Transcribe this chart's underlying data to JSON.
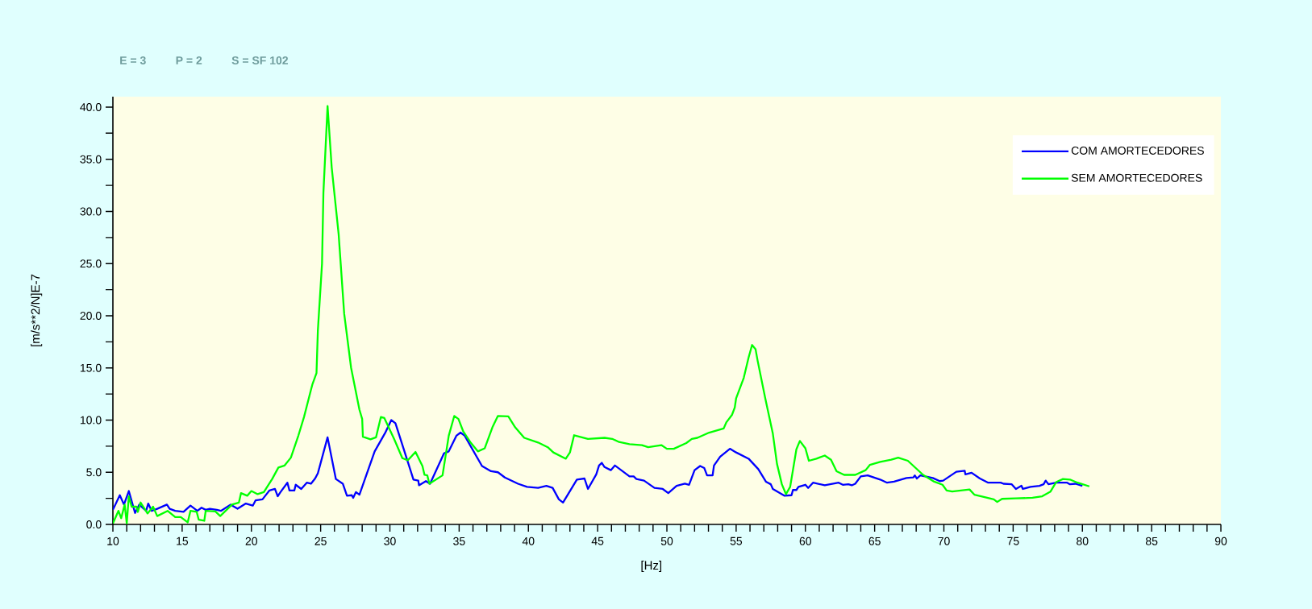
{
  "chart_data": {
    "type": "line",
    "xlabel": "[Hz]",
    "ylabel": "[m/s**2/N]E-7",
    "annotations": [
      "E = 3",
      "P = 2",
      "S = SF 102"
    ],
    "xlim": [
      10,
      90
    ],
    "ylim": [
      0,
      41
    ],
    "xticks": [
      10,
      {
        "value": 11,
        "label": null
      },
      {
        "value": 12,
        "label": null
      },
      {
        "value": 13,
        "label": null
      },
      {
        "value": 14,
        "label": null
      },
      15,
      {
        "value": 16,
        "label": null
      },
      {
        "value": 17,
        "label": null
      },
      {
        "value": 18,
        "label": null
      },
      {
        "value": 19,
        "label": null
      },
      20,
      {
        "value": 21,
        "label": null
      },
      {
        "value": 22,
        "label": null
      },
      {
        "value": 23,
        "label": null
      },
      {
        "value": 24,
        "label": null
      },
      25,
      {
        "value": 26,
        "label": null
      },
      {
        "value": 27,
        "label": null
      },
      {
        "value": 28,
        "label": null
      },
      {
        "value": 29,
        "label": null
      },
      30,
      {
        "value": 31,
        "label": null
      },
      {
        "value": 32,
        "label": null
      },
      {
        "value": 33,
        "label": null
      },
      {
        "value": 34,
        "label": null
      },
      35,
      {
        "value": 36,
        "label": null
      },
      {
        "value": 37,
        "label": null
      },
      {
        "value": 38,
        "label": null
      },
      {
        "value": 39,
        "label": null
      },
      40,
      {
        "value": 41,
        "label": null
      },
      {
        "value": 42,
        "label": null
      },
      {
        "value": 43,
        "label": null
      },
      {
        "value": 44,
        "label": null
      },
      45,
      {
        "value": 46,
        "label": null
      },
      {
        "value": 47,
        "label": null
      },
      {
        "value": 48,
        "label": null
      },
      {
        "value": 49,
        "label": null
      },
      50,
      {
        "value": 51,
        "label": null
      },
      {
        "value": 52,
        "label": null
      },
      {
        "value": 53,
        "label": null
      },
      {
        "value": 54,
        "label": null
      },
      55,
      {
        "value": 56,
        "label": null
      },
      {
        "value": 57,
        "label": null
      },
      {
        "value": 58,
        "label": null
      },
      {
        "value": 59,
        "label": null
      },
      60,
      {
        "value": 61,
        "label": null
      },
      {
        "value": 62,
        "label": null
      },
      {
        "value": 63,
        "label": null
      },
      {
        "value": 64,
        "label": null
      },
      65,
      {
        "value": 66,
        "label": null
      },
      {
        "value": 67,
        "label": null
      },
      {
        "value": 68,
        "label": null
      },
      {
        "value": 69,
        "label": null
      },
      70,
      {
        "value": 71,
        "label": null
      },
      {
        "value": 72,
        "label": null
      },
      {
        "value": 73,
        "label": null
      },
      {
        "value": 74,
        "label": null
      },
      75,
      {
        "value": 76,
        "label": null
      },
      {
        "value": 77,
        "label": null
      },
      {
        "value": 78,
        "label": null
      },
      {
        "value": 79,
        "label": null
      },
      80,
      {
        "value": 81,
        "label": null
      },
      {
        "value": 82,
        "label": null
      },
      {
        "value": 83,
        "label": null
      },
      {
        "value": 84,
        "label": null
      },
      85,
      {
        "value": 86,
        "label": null
      },
      {
        "value": 87,
        "label": null
      },
      {
        "value": 88,
        "label": null
      },
      {
        "value": 89,
        "label": null
      },
      90
    ],
    "yticks": [
      {
        "value": 0,
        "label": "0.0"
      },
      {
        "value": 2.5,
        "label": null
      },
      {
        "value": 5,
        "label": "5.0"
      },
      {
        "value": 7.5,
        "label": null
      },
      {
        "value": 10,
        "label": "10.0"
      },
      {
        "value": 12.5,
        "label": null
      },
      {
        "value": 15,
        "label": "15.0"
      },
      {
        "value": 17.5,
        "label": null
      },
      {
        "value": 20,
        "label": "20.0"
      },
      {
        "value": 22.5,
        "label": null
      },
      {
        "value": 25,
        "label": "25.0"
      },
      {
        "value": 27.5,
        "label": null
      },
      {
        "value": 30,
        "label": "30.0"
      },
      {
        "value": 32.5,
        "label": null
      },
      {
        "value": 35,
        "label": "35.0"
      },
      {
        "value": 37.5,
        "label": null
      },
      {
        "value": 40,
        "label": "40.0"
      }
    ],
    "legend": "top right",
    "series": [
      {
        "name": "COM AMORTECEDORES",
        "color": "#0000ff",
        "x": [
          10,
          10.5,
          10.8,
          11.15,
          11.6,
          11.9,
          12.4,
          12.55,
          12.8,
          13.2,
          13.9,
          14.1,
          14.5,
          15.1,
          15.6,
          16.1,
          16.4,
          16.7,
          17.0,
          17.5,
          17.8,
          18.5,
          19.0,
          19.6,
          20.1,
          20.3,
          20.8,
          21.3,
          21.7,
          21.9,
          22.1,
          22.6,
          22.75,
          23.1,
          23.2,
          23.6,
          24.0,
          24.3,
          24.6,
          24.8,
          25.5,
          26.1,
          26.6,
          26.9,
          27.25,
          27.35,
          27.55,
          27.8,
          28.9,
          29.65,
          30.1,
          30.4,
          31.7,
          32.05,
          32.1,
          32.6,
          32.9,
          33.9,
          34.25,
          34.8,
          35.1,
          35.4,
          36.65,
          37.3,
          37.8,
          38.3,
          39.25,
          39.9,
          40.7,
          41.3,
          41.75,
          42.2,
          42.5,
          43.5,
          44.05,
          44.3,
          44.9,
          45.1,
          45.3,
          45.5,
          45.95,
          46.25,
          47.3,
          47.6,
          47.8,
          48.35,
          49.1,
          49.7,
          50.1,
          50.7,
          51.3,
          51.6,
          52.0,
          52.4,
          52.7,
          52.9,
          53.3,
          53.4,
          53.85,
          54.55,
          55.0,
          55.9,
          56.6,
          57.15,
          57.5,
          57.65,
          58.5,
          59.0,
          59.1,
          59.35,
          59.5,
          60.0,
          60.2,
          60.55,
          61.4,
          62.4,
          62.7,
          63.1,
          63.35,
          63.6,
          64.0,
          64.5,
          65.4,
          65.9,
          66.4,
          67.3,
          67.8,
          67.9,
          68.05,
          68.3,
          69.2,
          69.7,
          69.95,
          70.9,
          71.5,
          71.55,
          72.0,
          72.6,
          73.2,
          74.1,
          74.3,
          74.9,
          75.2,
          75.6,
          75.7,
          76.25,
          76.9,
          77.2,
          77.35,
          77.55,
          78.1,
          78.9,
          79.1,
          79.5,
          80.0
        ],
        "values": [
          1.4,
          2.8,
          1.9,
          3.2,
          1.1,
          1.9,
          1.3,
          2.0,
          1.3,
          1.5,
          1.9,
          1.5,
          1.3,
          1.2,
          1.8,
          1.3,
          1.6,
          1.4,
          1.5,
          1.4,
          1.3,
          1.9,
          1.5,
          2.0,
          1.8,
          2.3,
          2.4,
          3.25,
          3.4,
          2.7,
          3.1,
          4.0,
          3.25,
          3.25,
          3.8,
          3.4,
          4.0,
          3.9,
          4.4,
          4.9,
          8.35,
          4.35,
          3.9,
          2.75,
          2.8,
          2.55,
          3.1,
          2.85,
          7.0,
          8.75,
          10.0,
          9.7,
          4.3,
          4.2,
          3.75,
          4.15,
          3.9,
          6.8,
          7.0,
          8.5,
          8.8,
          8.5,
          5.6,
          5.1,
          5.0,
          4.5,
          3.9,
          3.6,
          3.5,
          3.7,
          3.5,
          2.4,
          2.1,
          4.3,
          4.4,
          3.4,
          4.8,
          5.65,
          5.9,
          5.5,
          5.2,
          5.65,
          4.6,
          4.6,
          4.35,
          4.2,
          3.5,
          3.4,
          3.0,
          3.7,
          3.9,
          3.8,
          5.2,
          5.6,
          5.4,
          4.7,
          4.7,
          5.65,
          6.5,
          7.25,
          6.9,
          6.3,
          5.3,
          4.1,
          3.85,
          3.4,
          2.75,
          2.8,
          3.3,
          3.3,
          3.6,
          3.8,
          3.5,
          4.0,
          3.75,
          4.0,
          3.8,
          3.85,
          3.75,
          3.9,
          4.6,
          4.7,
          4.3,
          4.0,
          4.1,
          4.45,
          4.5,
          4.7,
          4.4,
          4.7,
          4.45,
          4.15,
          4.2,
          5.05,
          5.15,
          4.8,
          4.95,
          4.4,
          4.0,
          4.0,
          3.9,
          3.85,
          3.4,
          3.7,
          3.4,
          3.6,
          3.7,
          3.85,
          4.2,
          3.85,
          4.0,
          4.0,
          3.85,
          3.9,
          3.7
        ]
      },
      {
        "name": "SEM AMORTECEDORES",
        "color": "#00ff00",
        "x": [
          10,
          10.4,
          10.6,
          10.85,
          11.0,
          11.15,
          11.35,
          11.7,
          11.8,
          12.0,
          12.5,
          12.9,
          13.2,
          13.95,
          14.5,
          14.9,
          15.4,
          15.6,
          16.05,
          16.2,
          16.6,
          16.7,
          17.4,
          17.75,
          18.6,
          19.1,
          19.25,
          19.7,
          20.0,
          20.45,
          20.9,
          21.5,
          21.95,
          22.4,
          22.85,
          23.4,
          23.8,
          24.3,
          24.4,
          24.7,
          24.8,
          25.1,
          25.2,
          25.5,
          25.8,
          26.3,
          26.7,
          27.2,
          27.8,
          28.0,
          28.05,
          28.6,
          29.0,
          29.35,
          29.6,
          30.3,
          30.9,
          31.3,
          31.85,
          32.35,
          32.5,
          32.7,
          32.85,
          33.8,
          34.25,
          34.65,
          34.95,
          35.3,
          35.8,
          36.35,
          36.85,
          37.4,
          37.8,
          38.55,
          39.05,
          39.7,
          40.7,
          41.4,
          41.8,
          42.7,
          43.0,
          43.3,
          44.3,
          45.5,
          46.05,
          46.55,
          47.3,
          48.2,
          48.65,
          49.6,
          50.0,
          50.5,
          51.4,
          51.8,
          52.2,
          53.05,
          54.1,
          54.3,
          54.7,
          54.9,
          55.0,
          55.55,
          55.9,
          56.15,
          56.4,
          56.55,
          57.1,
          57.65,
          57.95,
          58.3,
          58.6,
          58.9,
          59.35,
          59.6,
          60.0,
          60.25,
          60.8,
          61.4,
          61.85,
          62.25,
          62.8,
          63.6,
          64.35,
          64.65,
          65.4,
          66.2,
          66.7,
          67.4,
          68.5,
          69.3,
          69.9,
          70.2,
          70.6,
          71.85,
          72.2,
          73.0,
          73.6,
          73.85,
          74.2,
          75.2,
          76.4,
          77.1,
          77.7,
          78.1,
          78.6,
          79.1,
          79.65,
          80.5
        ],
        "values": [
          0.1,
          1.3,
          0.6,
          1.9,
          0.1,
          2.7,
          1.7,
          1.7,
          1.2,
          2.1,
          1.05,
          1.7,
          0.8,
          1.3,
          0.7,
          0.7,
          0.2,
          1.3,
          1.2,
          0.45,
          0.35,
          1.3,
          1.25,
          0.8,
          1.9,
          2.1,
          3.0,
          2.75,
          3.2,
          2.9,
          3.1,
          4.35,
          5.45,
          5.65,
          6.4,
          8.55,
          10.3,
          12.9,
          13.4,
          14.5,
          18.6,
          25.0,
          31.8,
          40.1,
          34.2,
          27.8,
          20.2,
          15.0,
          11.0,
          10.1,
          8.4,
          8.15,
          8.35,
          10.3,
          10.2,
          8.2,
          6.35,
          6.15,
          6.95,
          5.6,
          4.75,
          4.7,
          3.9,
          4.7,
          8.5,
          10.4,
          10.1,
          8.9,
          7.9,
          7.0,
          7.3,
          9.3,
          10.4,
          10.35,
          9.3,
          8.3,
          7.85,
          7.4,
          6.9,
          6.3,
          6.9,
          8.55,
          8.2,
          8.3,
          8.2,
          7.9,
          7.7,
          7.6,
          7.4,
          7.6,
          7.25,
          7.25,
          7.8,
          8.2,
          8.3,
          8.8,
          9.2,
          9.8,
          10.5,
          11.2,
          12.1,
          14.05,
          16.0,
          17.2,
          16.8,
          15.7,
          12.1,
          8.7,
          5.8,
          3.85,
          2.9,
          3.6,
          7.2,
          8.0,
          7.3,
          6.1,
          6.3,
          6.6,
          6.2,
          5.1,
          4.75,
          4.75,
          5.2,
          5.7,
          6.0,
          6.2,
          6.4,
          6.1,
          4.75,
          4.1,
          3.8,
          3.25,
          3.15,
          3.35,
          2.85,
          2.6,
          2.4,
          2.15,
          2.45,
          2.5,
          2.55,
          2.7,
          3.15,
          4.05,
          4.35,
          4.3,
          4.0,
          3.65
        ]
      }
    ]
  }
}
